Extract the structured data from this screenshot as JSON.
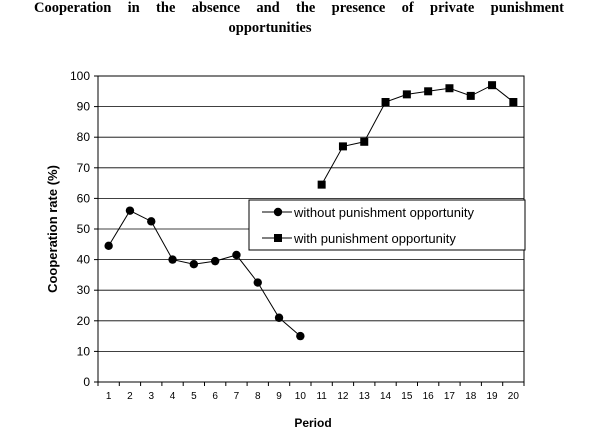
{
  "chart_data": {
    "type": "line",
    "title_line1": "Cooperation in the absence and the presence of private punishment",
    "title_line2": "opportunities",
    "xlabel": "Period",
    "ylabel": "Cooperation rate (%)",
    "x": [
      1,
      2,
      3,
      4,
      5,
      6,
      7,
      8,
      9,
      10,
      11,
      12,
      13,
      14,
      15,
      16,
      17,
      18,
      19,
      20
    ],
    "ylim": [
      0,
      100
    ],
    "yticks": [
      0,
      10,
      20,
      30,
      40,
      50,
      60,
      70,
      80,
      90,
      100
    ],
    "grid": "horizontal",
    "legend_position": "center-right",
    "series": [
      {
        "name": "without punishment opportunity",
        "marker": "circle",
        "x": [
          1,
          2,
          3,
          4,
          5,
          6,
          7,
          8,
          9,
          10
        ],
        "values": [
          44.5,
          56,
          52.5,
          40,
          38.5,
          39.5,
          41.5,
          32.5,
          21,
          15
        ]
      },
      {
        "name": "with punishment opportunity",
        "marker": "square",
        "x": [
          11,
          12,
          13,
          14,
          15,
          16,
          17,
          18,
          19,
          20
        ],
        "values": [
          64.5,
          77,
          78.5,
          91.5,
          94,
          95,
          96,
          93.5,
          97,
          91.5
        ]
      }
    ]
  }
}
